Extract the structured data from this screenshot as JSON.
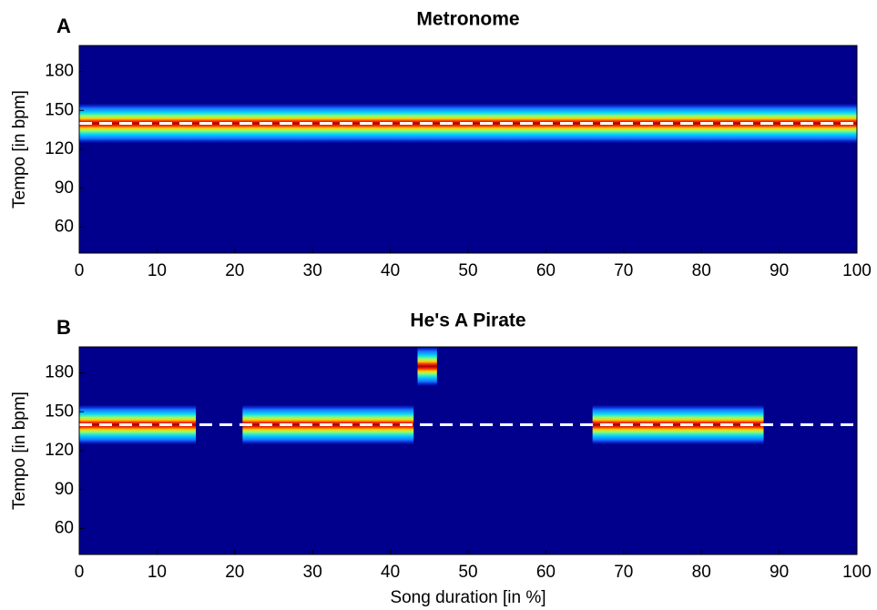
{
  "chart_data": [
    {
      "type": "heatmap",
      "panel_label": "A",
      "title": "Metronome",
      "ylabel": "Tempo [in bpm]",
      "xlim": [
        0,
        100
      ],
      "xticks": [
        0,
        10,
        20,
        30,
        40,
        50,
        60,
        70,
        80,
        90,
        100
      ],
      "ylim": [
        40,
        200
      ],
      "yticks": [
        60,
        90,
        120,
        150,
        180
      ],
      "reference_tempo": 140,
      "background": "#00008c",
      "bands": [
        {
          "x": [
            0,
            100
          ],
          "tempo": 140
        }
      ]
    },
    {
      "type": "heatmap",
      "panel_label": "B",
      "title": "He's A Pirate",
      "ylabel": "Tempo [in bpm]",
      "xlabel": "Song duration [in %]",
      "xlim": [
        0,
        100
      ],
      "xticks": [
        0,
        10,
        20,
        30,
        40,
        50,
        60,
        70,
        80,
        90,
        100
      ],
      "ylim": [
        40,
        200
      ],
      "yticks": [
        60,
        90,
        120,
        150,
        180
      ],
      "reference_tempo": 140,
      "background": "#00008c",
      "bands": [
        {
          "x": [
            0,
            15
          ],
          "tempo": 140
        },
        {
          "x": [
            21,
            43
          ],
          "tempo": 140
        },
        {
          "x": [
            66,
            88
          ],
          "tempo": 140
        },
        {
          "x": [
            43.5,
            46
          ],
          "tempo": 185
        }
      ]
    }
  ]
}
